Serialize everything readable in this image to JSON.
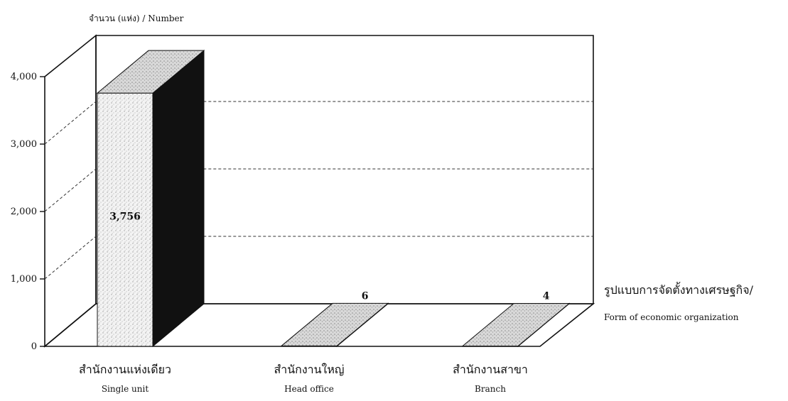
{
  "chart_data": {
    "type": "bar",
    "style": "3d",
    "y_axis_title": "จำนวน (แห่ง)  / Number",
    "x_axis_title_th": "รูปแบบการจัดตั้งทางเศรษฐกิจ/",
    "x_axis_title_en": "Form of  economic organization",
    "ylim": [
      0,
      4000
    ],
    "yticks": [
      {
        "value": 0,
        "label": "0"
      },
      {
        "value": 1000,
        "label": "1,000"
      },
      {
        "value": 2000,
        "label": "2,000"
      },
      {
        "value": 3000,
        "label": "3,000"
      },
      {
        "value": 4000,
        "label": "4,000"
      }
    ],
    "grid": "dashed",
    "categories": [
      {
        "th": "สำนักงานแห่งเดียว",
        "en": "Single unit"
      },
      {
        "th": "สำนักงานใหญ่",
        "en": "Head office"
      },
      {
        "th": "สำนักงานสาขา",
        "en": "Branch"
      }
    ],
    "values": [
      3756,
      6,
      4
    ],
    "data_labels": [
      "3,756",
      "6",
      "4"
    ]
  },
  "colors": {
    "bar_front": "#f2f2f2",
    "bar_top": "#d4d4d4",
    "bar_side": "#111111",
    "line": "#111111"
  }
}
